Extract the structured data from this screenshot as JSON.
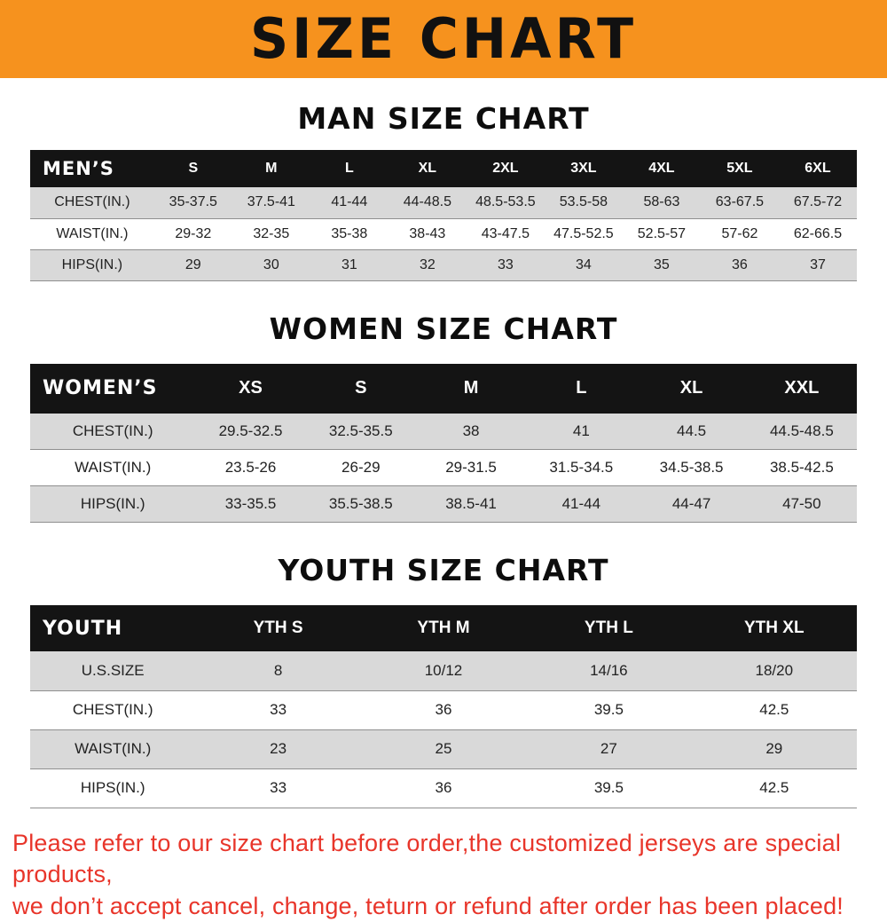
{
  "banner": {
    "title": "SIZE CHART"
  },
  "sections": [
    {
      "heading": "MAN SIZE CHART",
      "table": {
        "header": [
          "MEN’S",
          "S",
          "M",
          "L",
          "XL",
          "2XL",
          "3XL",
          "4XL",
          "5XL",
          "6XL"
        ],
        "rows": [
          {
            "label": "CHEST(IN.)",
            "values": [
              "35-37.5",
              "37.5-41",
              "41-44",
              "44-48.5",
              "48.5-53.5",
              "53.5-58",
              "58-63",
              "63-67.5",
              "67.5-72"
            ]
          },
          {
            "label": "WAIST(IN.)",
            "values": [
              "29-32",
              "32-35",
              "35-38",
              "38-43",
              "43-47.5",
              "47.5-52.5",
              "52.5-57",
              "57-62",
              "62-66.5"
            ]
          },
          {
            "label": "HIPS(IN.)",
            "values": [
              "29",
              "30",
              "31",
              "32",
              "33",
              "34",
              "35",
              "36",
              "37"
            ]
          }
        ]
      }
    },
    {
      "heading": "WOMEN SIZE CHART",
      "table": {
        "header": [
          "WOMEN’S",
          "XS",
          "S",
          "M",
          "L",
          "XL",
          "XXL"
        ],
        "rows": [
          {
            "label": "CHEST(IN.)",
            "values": [
              "29.5-32.5",
              "32.5-35.5",
              "38",
              "41",
              "44.5",
              "44.5-48.5"
            ]
          },
          {
            "label": "WAIST(IN.)",
            "values": [
              "23.5-26",
              "26-29",
              "29-31.5",
              "31.5-34.5",
              "34.5-38.5",
              "38.5-42.5"
            ]
          },
          {
            "label": "HIPS(IN.)",
            "values": [
              "33-35.5",
              "35.5-38.5",
              "38.5-41",
              "41-44",
              "44-47",
              "47-50"
            ]
          }
        ]
      }
    },
    {
      "heading": "YOUTH SIZE CHART",
      "table": {
        "header": [
          "YOUTH",
          "YTH S",
          "YTH M",
          "YTH L",
          "YTH XL"
        ],
        "rows": [
          {
            "label": "U.S.SIZE",
            "values": [
              "8",
              "10/12",
              "14/16",
              "18/20"
            ]
          },
          {
            "label": "CHEST(IN.)",
            "values": [
              "33",
              "36",
              "39.5",
              "42.5"
            ]
          },
          {
            "label": "WAIST(IN.)",
            "values": [
              "23",
              "25",
              "27",
              "29"
            ]
          },
          {
            "label": "HIPS(IN.)",
            "values": [
              "33",
              "36",
              "39.5",
              "42.5"
            ]
          }
        ]
      }
    }
  ],
  "disclaimer": {
    "line1": "Please refer to our size chart before order,the customized jerseys are special products,",
    "line2": "we don’t accept cancel, change, teturn or refund after order has been placed!"
  },
  "colors": {
    "banner_orange": "#f6921e",
    "header_black": "#141414",
    "stripe_gray": "#d9d9d9",
    "disclaimer_red": "#e8352a"
  }
}
